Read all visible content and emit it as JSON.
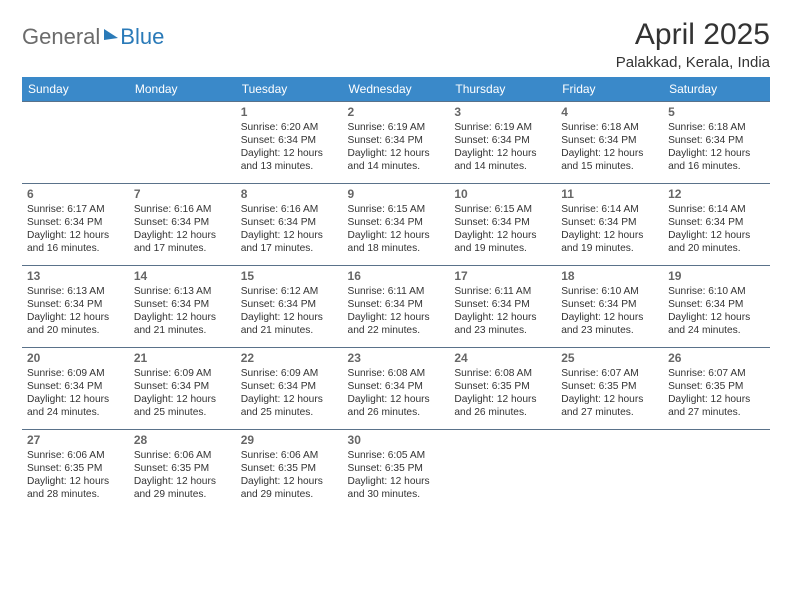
{
  "brand": {
    "part1": "General",
    "part2": "Blue"
  },
  "title": "April 2025",
  "location": "Palakkad, Kerala, India",
  "colors": {
    "header_bg": "#3a89c9",
    "header_text": "#ffffff",
    "cell_border": "#5a728a",
    "daynum_color": "#666666",
    "body_text": "#333333",
    "brand_gray": "#6b6b6b",
    "brand_blue": "#2a7ab8",
    "background": "#ffffff"
  },
  "daysOfWeek": [
    "Sunday",
    "Monday",
    "Tuesday",
    "Wednesday",
    "Thursday",
    "Friday",
    "Saturday"
  ],
  "weeks": [
    [
      {
        "empty": true
      },
      {
        "empty": true
      },
      {
        "day": "1",
        "sunrise": "Sunrise: 6:20 AM",
        "sunset": "Sunset: 6:34 PM",
        "dl1": "Daylight: 12 hours",
        "dl2": "and 13 minutes."
      },
      {
        "day": "2",
        "sunrise": "Sunrise: 6:19 AM",
        "sunset": "Sunset: 6:34 PM",
        "dl1": "Daylight: 12 hours",
        "dl2": "and 14 minutes."
      },
      {
        "day": "3",
        "sunrise": "Sunrise: 6:19 AM",
        "sunset": "Sunset: 6:34 PM",
        "dl1": "Daylight: 12 hours",
        "dl2": "and 14 minutes."
      },
      {
        "day": "4",
        "sunrise": "Sunrise: 6:18 AM",
        "sunset": "Sunset: 6:34 PM",
        "dl1": "Daylight: 12 hours",
        "dl2": "and 15 minutes."
      },
      {
        "day": "5",
        "sunrise": "Sunrise: 6:18 AM",
        "sunset": "Sunset: 6:34 PM",
        "dl1": "Daylight: 12 hours",
        "dl2": "and 16 minutes."
      }
    ],
    [
      {
        "day": "6",
        "sunrise": "Sunrise: 6:17 AM",
        "sunset": "Sunset: 6:34 PM",
        "dl1": "Daylight: 12 hours",
        "dl2": "and 16 minutes."
      },
      {
        "day": "7",
        "sunrise": "Sunrise: 6:16 AM",
        "sunset": "Sunset: 6:34 PM",
        "dl1": "Daylight: 12 hours",
        "dl2": "and 17 minutes."
      },
      {
        "day": "8",
        "sunrise": "Sunrise: 6:16 AM",
        "sunset": "Sunset: 6:34 PM",
        "dl1": "Daylight: 12 hours",
        "dl2": "and 17 minutes."
      },
      {
        "day": "9",
        "sunrise": "Sunrise: 6:15 AM",
        "sunset": "Sunset: 6:34 PM",
        "dl1": "Daylight: 12 hours",
        "dl2": "and 18 minutes."
      },
      {
        "day": "10",
        "sunrise": "Sunrise: 6:15 AM",
        "sunset": "Sunset: 6:34 PM",
        "dl1": "Daylight: 12 hours",
        "dl2": "and 19 minutes."
      },
      {
        "day": "11",
        "sunrise": "Sunrise: 6:14 AM",
        "sunset": "Sunset: 6:34 PM",
        "dl1": "Daylight: 12 hours",
        "dl2": "and 19 minutes."
      },
      {
        "day": "12",
        "sunrise": "Sunrise: 6:14 AM",
        "sunset": "Sunset: 6:34 PM",
        "dl1": "Daylight: 12 hours",
        "dl2": "and 20 minutes."
      }
    ],
    [
      {
        "day": "13",
        "sunrise": "Sunrise: 6:13 AM",
        "sunset": "Sunset: 6:34 PM",
        "dl1": "Daylight: 12 hours",
        "dl2": "and 20 minutes."
      },
      {
        "day": "14",
        "sunrise": "Sunrise: 6:13 AM",
        "sunset": "Sunset: 6:34 PM",
        "dl1": "Daylight: 12 hours",
        "dl2": "and 21 minutes."
      },
      {
        "day": "15",
        "sunrise": "Sunrise: 6:12 AM",
        "sunset": "Sunset: 6:34 PM",
        "dl1": "Daylight: 12 hours",
        "dl2": "and 21 minutes."
      },
      {
        "day": "16",
        "sunrise": "Sunrise: 6:11 AM",
        "sunset": "Sunset: 6:34 PM",
        "dl1": "Daylight: 12 hours",
        "dl2": "and 22 minutes."
      },
      {
        "day": "17",
        "sunrise": "Sunrise: 6:11 AM",
        "sunset": "Sunset: 6:34 PM",
        "dl1": "Daylight: 12 hours",
        "dl2": "and 23 minutes."
      },
      {
        "day": "18",
        "sunrise": "Sunrise: 6:10 AM",
        "sunset": "Sunset: 6:34 PM",
        "dl1": "Daylight: 12 hours",
        "dl2": "and 23 minutes."
      },
      {
        "day": "19",
        "sunrise": "Sunrise: 6:10 AM",
        "sunset": "Sunset: 6:34 PM",
        "dl1": "Daylight: 12 hours",
        "dl2": "and 24 minutes."
      }
    ],
    [
      {
        "day": "20",
        "sunrise": "Sunrise: 6:09 AM",
        "sunset": "Sunset: 6:34 PM",
        "dl1": "Daylight: 12 hours",
        "dl2": "and 24 minutes."
      },
      {
        "day": "21",
        "sunrise": "Sunrise: 6:09 AM",
        "sunset": "Sunset: 6:34 PM",
        "dl1": "Daylight: 12 hours",
        "dl2": "and 25 minutes."
      },
      {
        "day": "22",
        "sunrise": "Sunrise: 6:09 AM",
        "sunset": "Sunset: 6:34 PM",
        "dl1": "Daylight: 12 hours",
        "dl2": "and 25 minutes."
      },
      {
        "day": "23",
        "sunrise": "Sunrise: 6:08 AM",
        "sunset": "Sunset: 6:34 PM",
        "dl1": "Daylight: 12 hours",
        "dl2": "and 26 minutes."
      },
      {
        "day": "24",
        "sunrise": "Sunrise: 6:08 AM",
        "sunset": "Sunset: 6:35 PM",
        "dl1": "Daylight: 12 hours",
        "dl2": "and 26 minutes."
      },
      {
        "day": "25",
        "sunrise": "Sunrise: 6:07 AM",
        "sunset": "Sunset: 6:35 PM",
        "dl1": "Daylight: 12 hours",
        "dl2": "and 27 minutes."
      },
      {
        "day": "26",
        "sunrise": "Sunrise: 6:07 AM",
        "sunset": "Sunset: 6:35 PM",
        "dl1": "Daylight: 12 hours",
        "dl2": "and 27 minutes."
      }
    ],
    [
      {
        "day": "27",
        "sunrise": "Sunrise: 6:06 AM",
        "sunset": "Sunset: 6:35 PM",
        "dl1": "Daylight: 12 hours",
        "dl2": "and 28 minutes."
      },
      {
        "day": "28",
        "sunrise": "Sunrise: 6:06 AM",
        "sunset": "Sunset: 6:35 PM",
        "dl1": "Daylight: 12 hours",
        "dl2": "and 29 minutes."
      },
      {
        "day": "29",
        "sunrise": "Sunrise: 6:06 AM",
        "sunset": "Sunset: 6:35 PM",
        "dl1": "Daylight: 12 hours",
        "dl2": "and 29 minutes."
      },
      {
        "day": "30",
        "sunrise": "Sunrise: 6:05 AM",
        "sunset": "Sunset: 6:35 PM",
        "dl1": "Daylight: 12 hours",
        "dl2": "and 30 minutes."
      },
      {
        "empty": true
      },
      {
        "empty": true
      },
      {
        "empty": true
      }
    ]
  ]
}
